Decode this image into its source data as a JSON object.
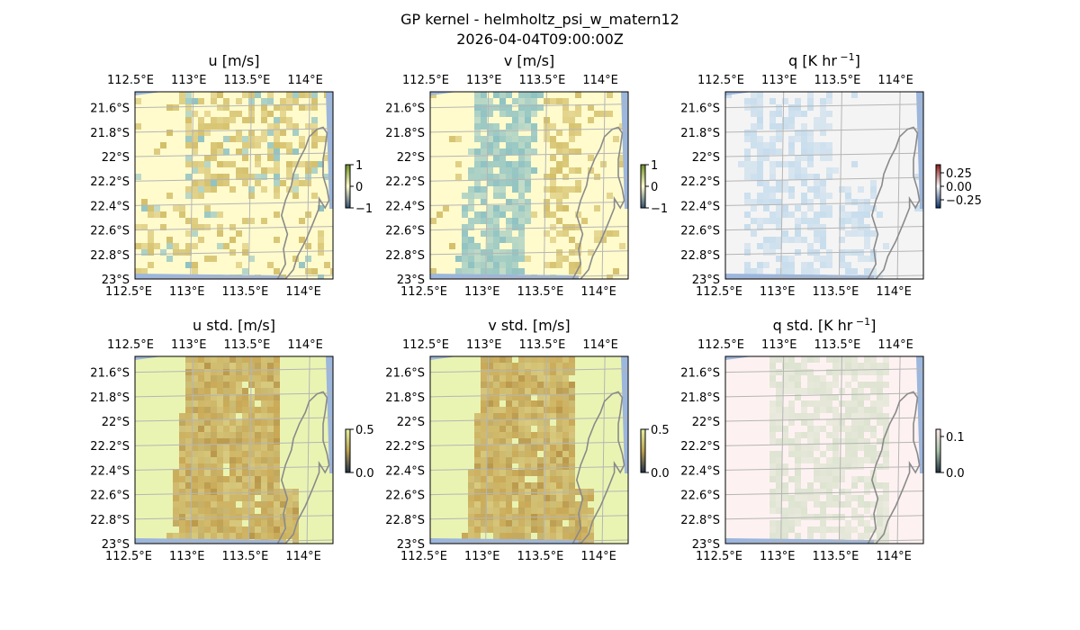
{
  "figure": {
    "title": "GP kernel - helmholtz_psi_w_matern12",
    "subtitle": "2026-04-04T09:00:00Z"
  },
  "chart_data": [
    {
      "type": "heatmap",
      "title": "u [m/s]",
      "x_tick_labels": [
        "112.5°E",
        "113°E",
        "113.5°E",
        "114°E"
      ],
      "y_tick_labels": [
        "21.6°S",
        "21.8°S",
        "22°S",
        "22.2°S",
        "22.4°S",
        "22.6°S",
        "22.8°S",
        "23°S"
      ],
      "x_ticks": [
        112.5,
        113.0,
        113.5,
        114.0
      ],
      "y_ticks": [
        -21.6,
        -21.8,
        -22.0,
        -22.2,
        -22.4,
        -22.6,
        -22.8,
        -23.0
      ],
      "xlim": [
        112.5,
        114.2
      ],
      "ylim": [
        -23.0,
        -21.47
      ],
      "colorbar": {
        "ticks": [
          1,
          0,
          -1
        ],
        "tick_labels": [
          "1",
          "0",
          "−1"
        ],
        "range": [
          -1,
          1
        ],
        "colormap": "diverging-blue-white-olive"
      },
      "grid": true
    },
    {
      "type": "heatmap",
      "title": "v [m/s]",
      "x_tick_labels": [
        "112.5°E",
        "113°E",
        "113.5°E",
        "114°E"
      ],
      "y_tick_labels": [
        "21.6°S",
        "21.8°S",
        "22°S",
        "22.2°S",
        "22.4°S",
        "22.6°S",
        "22.8°S",
        "23°S"
      ],
      "x_ticks": [
        112.5,
        113.0,
        113.5,
        114.0
      ],
      "y_ticks": [
        -21.6,
        -21.8,
        -22.0,
        -22.2,
        -22.4,
        -22.6,
        -22.8,
        -23.0
      ],
      "xlim": [
        112.5,
        114.2
      ],
      "ylim": [
        -23.0,
        -21.47
      ],
      "colorbar": {
        "ticks": [
          1,
          0,
          -1
        ],
        "tick_labels": [
          "1",
          "0",
          "−1"
        ],
        "range": [
          -1,
          1
        ],
        "colormap": "diverging-blue-white-olive"
      },
      "grid": true
    },
    {
      "type": "heatmap",
      "title": "q [K hr",
      "title_superscript": "−1",
      "title_suffix": "]",
      "x_tick_labels": [
        "112.5°E",
        "113°E",
        "113.5°E",
        "114°E"
      ],
      "y_tick_labels": [
        "21.6°S",
        "21.8°S",
        "22°S",
        "22.2°S",
        "22.4°S",
        "22.6°S",
        "22.8°S",
        "23°S"
      ],
      "x_ticks": [
        112.5,
        113.0,
        113.5,
        114.0
      ],
      "y_ticks": [
        -21.6,
        -21.8,
        -22.0,
        -22.2,
        -22.4,
        -22.6,
        -22.8,
        -23.0
      ],
      "xlim": [
        112.5,
        114.2
      ],
      "ylim": [
        -23.0,
        -21.47
      ],
      "colorbar": {
        "ticks": [
          0.25,
          0.0,
          -0.25
        ],
        "tick_labels": [
          "0.25",
          "0.00",
          "−0.25"
        ],
        "range": [
          -0.4,
          0.4
        ],
        "colormap": "diverging-blue-white-red"
      },
      "grid": true
    },
    {
      "type": "heatmap",
      "title": "u std. [m/s]",
      "x_tick_labels": [
        "112.5°E",
        "113°E",
        "113.5°E",
        "114°E"
      ],
      "y_tick_labels": [
        "21.6°S",
        "21.8°S",
        "22°S",
        "22.2°S",
        "22.4°S",
        "22.6°S",
        "22.8°S",
        "23°S"
      ],
      "x_ticks": [
        112.5,
        113.0,
        113.5,
        114.0
      ],
      "y_ticks": [
        -21.6,
        -21.8,
        -22.0,
        -22.2,
        -22.4,
        -22.6,
        -22.8,
        -23.0
      ],
      "xlim": [
        112.5,
        114.2
      ],
      "ylim": [
        -23.0,
        -21.47
      ],
      "colorbar": {
        "ticks": [
          0.5,
          0.0
        ],
        "tick_labels": [
          "0.5",
          "0.0"
        ],
        "range": [
          0,
          0.5
        ],
        "colormap": "sequential-dark-to-olive"
      },
      "grid": true
    },
    {
      "type": "heatmap",
      "title": "v std. [m/s]",
      "x_tick_labels": [
        "112.5°E",
        "113°E",
        "113.5°E",
        "114°E"
      ],
      "y_tick_labels": [
        "21.6°S",
        "21.8°S",
        "22°S",
        "22.2°S",
        "22.4°S",
        "22.6°S",
        "22.8°S",
        "23°S"
      ],
      "x_ticks": [
        112.5,
        113.0,
        113.5,
        114.0
      ],
      "y_ticks": [
        -21.6,
        -21.8,
        -22.0,
        -22.2,
        -22.4,
        -22.6,
        -22.8,
        -23.0
      ],
      "xlim": [
        112.5,
        114.2
      ],
      "ylim": [
        -23.0,
        -21.47
      ],
      "colorbar": {
        "ticks": [
          0.5,
          0.0
        ],
        "tick_labels": [
          "0.5",
          "0.0"
        ],
        "range": [
          0,
          0.5
        ],
        "colormap": "sequential-dark-to-olive"
      },
      "grid": true
    },
    {
      "type": "heatmap",
      "title": "q std. [K hr",
      "title_superscript": "−1",
      "title_suffix": "]",
      "x_tick_labels": [
        "112.5°E",
        "113°E",
        "113.5°E",
        "114°E"
      ],
      "y_tick_labels": [
        "21.6°S",
        "21.8°S",
        "22°S",
        "22.2°S",
        "22.4°S",
        "22.6°S",
        "22.8°S",
        "23°S"
      ],
      "x_ticks": [
        112.5,
        113.0,
        113.5,
        114.0
      ],
      "y_ticks": [
        -21.6,
        -21.8,
        -22.0,
        -22.2,
        -22.4,
        -22.6,
        -22.8,
        -23.0
      ],
      "xlim": [
        112.5,
        114.2
      ],
      "ylim": [
        -23.0,
        -21.47
      ],
      "colorbar": {
        "ticks": [
          0.1,
          0.0
        ],
        "tick_labels": [
          "0.1",
          "0.0"
        ],
        "range": [
          0,
          0.12
        ],
        "colormap": "sequential-dark-to-pink"
      },
      "grid": true
    }
  ],
  "colors": {
    "ocean": "#9db6dc",
    "coastline": "#8a8a8a",
    "gridline": "#b5b5b5",
    "u_v_background": "#fffbcc",
    "u_v_pattern_olive": "#d4bf6a",
    "u_v_pattern_teal": "#8fc2c2",
    "q_background": "#f4f4f4",
    "q_pattern_blue": "#c6dcec",
    "q_edge_blue": "#3d7fbf",
    "std_background": "#eaf4b2",
    "std_pattern": "#c8a755",
    "q_std_background": "#fdf2f1",
    "q_std_pattern": "#dce3cf"
  }
}
